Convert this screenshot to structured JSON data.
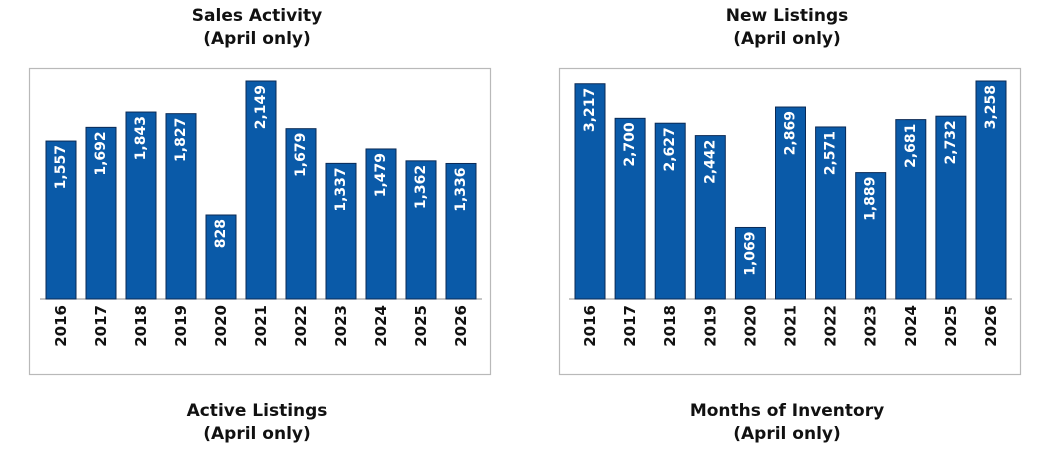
{
  "titles": {
    "sales": {
      "line1": "Sales Activity",
      "line2": "(April only)"
    },
    "new_listings": {
      "line1": "New Listings",
      "line2": "(April only)"
    },
    "active": {
      "line1": "Active Listings",
      "line2": "(April only)"
    },
    "inventory": {
      "line1": "Months of Inventory",
      "line2": "(April only)"
    }
  },
  "colors": {
    "bar": "#0a5aa8",
    "bar_stroke": "#0a2a55",
    "label": "#ffffff",
    "frame": "#b9b9b9"
  },
  "chart_data": [
    {
      "type": "bar",
      "title": "Sales Activity (April only)",
      "categories": [
        "2016",
        "2017",
        "2018",
        "2019",
        "2020",
        "2021",
        "2022",
        "2023",
        "2024",
        "2025",
        "2026"
      ],
      "values": [
        1557,
        1692,
        1843,
        1827,
        828,
        2149,
        1679,
        1337,
        1479,
        1362,
        1336
      ],
      "labels": [
        "1,557",
        "1,692",
        "1,843",
        "1,827",
        "828",
        "2,149",
        "1,679",
        "1,337",
        "1,479",
        "1,362",
        "1,336"
      ],
      "ylim": [
        0,
        2149
      ],
      "grid": false,
      "legend": "none"
    },
    {
      "type": "bar",
      "title": "New Listings (April only)",
      "categories": [
        "2016",
        "2017",
        "2018",
        "2019",
        "2020",
        "2021",
        "2022",
        "2023",
        "2024",
        "2025",
        "2026"
      ],
      "values": [
        3217,
        2700,
        2627,
        2442,
        1069,
        2869,
        2571,
        1889,
        2681,
        2732,
        3258
      ],
      "labels": [
        "3,217",
        "2,700",
        "2,627",
        "2,442",
        "1,069",
        "2,869",
        "2,571",
        "1,889",
        "2,681",
        "2,732",
        "3,258"
      ],
      "ylim": [
        0,
        3258
      ],
      "grid": false,
      "legend": "none"
    }
  ]
}
